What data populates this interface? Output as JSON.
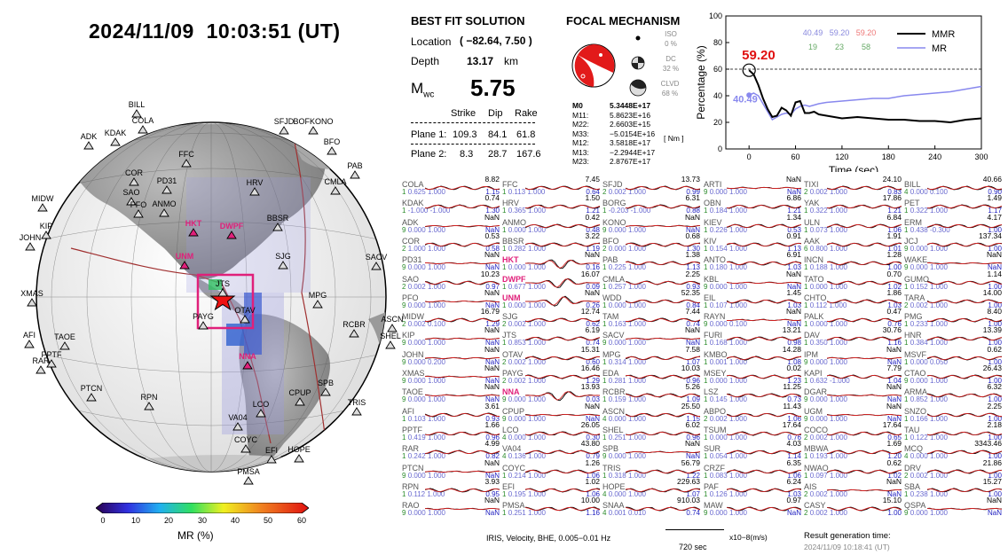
{
  "header": {
    "datetime": "2024/11/09  10:03:51 (UT)"
  },
  "colorbar": {
    "ticks": [
      "0",
      "10",
      "20",
      "30",
      "40",
      "50",
      "60"
    ],
    "label": "MR (%)"
  },
  "globe": {
    "stations": [
      "BILL",
      "COLA",
      "ADK",
      "KDAK",
      "SFJD",
      "BOFKONO",
      "BFO",
      "FFC",
      "COR",
      "PD31",
      "SAO",
      "ANMO",
      "PFO",
      "HRV",
      "CMLA",
      "PAB",
      "MIDW",
      "KIP",
      "JOHN",
      "HKT",
      "DWPF",
      "BBSR",
      "UNM",
      "SACV",
      "SJG",
      "XMAS",
      "JTS",
      "OTAV",
      "PAYG",
      "MPG",
      "ASCN",
      "SHEL",
      "AFI",
      "TAOE",
      "RAR",
      "PPTF",
      "RCBR",
      "NNA",
      "PTCN",
      "RPN",
      "CPUP",
      "SPB",
      "LCO",
      "TRIS",
      "VA04",
      "COYC",
      "EFI",
      "HOPE",
      "PMSA"
    ],
    "highlighted": [
      "HKT",
      "DWPF",
      "UNM",
      "NNA"
    ]
  },
  "best_fit": {
    "title": "BEST FIT SOLUTION",
    "location_label": "Location",
    "location_value": "( −82.64,  7.50 )",
    "depth_label": "Depth",
    "depth_value": "13.17",
    "depth_unit": "km",
    "mw_label": "M",
    "mw_sub": "wc",
    "mw_value": "5.75",
    "cols": [
      "Strike",
      "Dip",
      "Rake"
    ],
    "planes": [
      {
        "label": "Plane 1:",
        "strike": "109.3",
        "dip": "84.1",
        "rake": "61.8"
      },
      {
        "label": "Plane 2:",
        "strike": "8.3",
        "dip": "28.7",
        "rake": "167.6"
      }
    ]
  },
  "focal": {
    "title": "FOCAL MECHANISM",
    "iso_label": "ISO",
    "iso_val": "0  %",
    "dc_label": "DC",
    "dc_val": "32 %",
    "clvd_label": "CLVD",
    "clvd_val": "68 %",
    "moments": [
      {
        "k": "M0",
        "v": "5.3448E+17"
      },
      {
        "k": "M11:",
        "v": "5.8623E+16"
      },
      {
        "k": "M22:",
        "v": "2.6603E+15"
      },
      {
        "k": "M33:",
        "v": "−5.0154E+16"
      },
      {
        "k": "M12:",
        "v": "3.5818E+17"
      },
      {
        "k": "M13:",
        "v": "−2.2944E+17"
      },
      {
        "k": "M23:",
        "v": "2.8767E+17"
      }
    ],
    "unit": "[ Nm ]"
  },
  "chart_data": {
    "type": "line",
    "xlabel": "Time (sec)",
    "ylabel": "Percentage (%)",
    "xlim": [
      -30,
      300
    ],
    "ylim": [
      0,
      100
    ],
    "xticks": [
      "0",
      "60",
      "120",
      "180",
      "240",
      "300"
    ],
    "yticks": [
      "0",
      "20",
      "40",
      "60",
      "80",
      "100"
    ],
    "marker_value": "59.20",
    "mr_marker": "40.49",
    "legend_nums": [
      {
        "v": "40.49",
        "c": "#8888dd"
      },
      {
        "v": "59.20",
        "c": "#8888dd"
      },
      {
        "v": "59.20",
        "c": "#ee7777"
      },
      {
        "v": "19",
        "c": "#66aa66"
      },
      {
        "v": "23",
        "c": "#66aa66"
      },
      {
        "v": "58",
        "c": "#66aa66"
      }
    ],
    "series": [
      {
        "name": "MMR",
        "color": "#000000",
        "x": [
          0,
          6,
          12,
          18,
          24,
          30,
          36,
          42,
          48,
          54,
          60,
          66,
          72,
          78,
          84,
          90,
          100,
          120,
          140,
          160,
          180,
          200,
          220,
          240,
          260,
          280,
          300
        ],
        "values": [
          59.2,
          56,
          48,
          38,
          30,
          24,
          25,
          31,
          29,
          25,
          35,
          36,
          27,
          27,
          28,
          26,
          25,
          23,
          24,
          23,
          22,
          22,
          21,
          21,
          20,
          22,
          23
        ]
      },
      {
        "name": "MR",
        "color": "#8888ee",
        "x": [
          0,
          6,
          12,
          18,
          24,
          30,
          36,
          42,
          48,
          54,
          60,
          66,
          72,
          78,
          84,
          90,
          100,
          120,
          140,
          160,
          180,
          200,
          220,
          240,
          260,
          280,
          300
        ],
        "values": [
          40.49,
          42,
          40,
          34,
          28,
          22,
          24,
          26,
          27,
          26,
          30,
          32,
          33,
          32,
          33,
          34,
          35,
          36,
          37,
          38,
          38,
          40,
          41,
          42,
          43,
          45,
          47
        ]
      }
    ]
  },
  "waveforms": [
    [
      [
        "COLA",
        "8.82",
        "1",
        "0.625",
        "1.000",
        "1.15"
      ],
      [
        "KDAK",
        "0.74",
        "1",
        "-1.000",
        "-1.000",
        "1.30"
      ],
      [
        "ADK",
        "NaN",
        "9",
        "0.000",
        "1.000",
        "NaN"
      ],
      [
        "COR",
        "0.53",
        "2",
        "1.000",
        "1.000",
        "0.58"
      ],
      [
        "PD31",
        "NaN",
        "9",
        "0.000",
        "1.000",
        "NaN"
      ],
      [
        "SAO",
        "10.23",
        "2",
        "0.002",
        "1.000",
        "0.97"
      ],
      [
        "PFO",
        "NaN",
        "9",
        "0.000",
        "1.000",
        "NaN"
      ],
      [
        "MIDW",
        "16.79",
        "2",
        "0.002",
        "0.100",
        "1.29"
      ],
      [
        "KIP",
        "NaN",
        "9",
        "0.000",
        "1.000",
        "NaN"
      ],
      [
        "JOHN",
        "NaN",
        "9",
        "0.000",
        "0.200",
        "NaN"
      ],
      [
        "XMAS",
        "NaN",
        "9",
        "0.000",
        "1.000",
        "NaN"
      ],
      [
        "TAOE",
        "NaN",
        "9",
        "0.000",
        "1.000",
        "NaN"
      ],
      [
        "AFI",
        "3.61",
        "1",
        "0.103",
        "1.000",
        "0.93"
      ],
      [
        "PPTF",
        "1.66",
        "1",
        "0.419",
        "1.000",
        "0.96"
      ],
      [
        "RAR",
        "4.99",
        "1",
        "0.242",
        "1.000",
        "0.82"
      ],
      [
        "PTCN",
        "NaN",
        "9",
        "0.000",
        "1.000",
        "NaN"
      ],
      [
        "RPN",
        "3.93",
        "1",
        "0.112",
        "1.000",
        "0.95"
      ],
      [
        "RAO",
        "NaN",
        "9",
        "0.000",
        "1.000",
        "NaN"
      ]
    ],
    [
      [
        "FFC",
        "7.45",
        "1",
        "0.113",
        "1.000",
        "0.64"
      ],
      [
        "HRV",
        "1.50",
        "1",
        "0.365",
        "1.000",
        "1.21"
      ],
      [
        "ANMO",
        "0.42",
        "1",
        "0.000",
        "1.000",
        "0.48"
      ],
      [
        "BBSR",
        "3.22",
        "1",
        "0.282",
        "1.000",
        "1.19"
      ],
      [
        "HKT",
        "NaN",
        "1",
        "0.000",
        "1.000",
        "0.16"
      ],
      [
        "DWPF",
        "16.07",
        "1",
        "0.677",
        "1.000",
        "0.09"
      ],
      [
        "UNM",
        "NaN",
        "1",
        "0.000",
        "1.000",
        "0.26"
      ],
      [
        "SJG",
        "12.74",
        "2",
        "0.002",
        "1.000",
        "0.62"
      ],
      [
        "JTS",
        "6.19",
        "1",
        "0.853",
        "1.000",
        "0.74"
      ],
      [
        "OTAV",
        "15.31",
        "2",
        "0.002",
        "1.000",
        "0.60"
      ],
      [
        "PAYG",
        "16.46",
        "2",
        "0.002",
        "1.000",
        "1.29"
      ],
      [
        "NNA",
        "13.93",
        "9",
        "0.000",
        "1.000",
        "0.03"
      ],
      [
        "CPUP",
        "NaN",
        "9",
        "0.000",
        "1.000",
        "NaN"
      ],
      [
        "LCO",
        "26.05",
        "4",
        "0.000",
        "1.000",
        "0.30"
      ],
      [
        "VA04",
        "43.80",
        "4",
        "0.136",
        "1.000",
        "0.79"
      ],
      [
        "COYC",
        "1.26",
        "1",
        "0.214",
        "1.000",
        "1.06"
      ],
      [
        "EFI",
        "1.02",
        "1",
        "0.195",
        "1.000",
        "1.06"
      ],
      [
        "PMSA",
        "10.00",
        "1",
        "0.251",
        "1.000",
        "1.16"
      ]
    ],
    [
      [
        "SFJD",
        "13.73",
        "2",
        "0.002",
        "1.000",
        "0.99"
      ],
      [
        "BORG",
        "6.31",
        "1",
        "-0.203",
        "-1.000",
        "0.88"
      ],
      [
        "KONO",
        "NaN",
        "9",
        "0.000",
        "1.000",
        "NaN"
      ],
      [
        "BFO",
        "0.68",
        "2",
        "0.000",
        "1.000",
        "1.30"
      ],
      [
        "PAB",
        "1.38",
        "1",
        "0.225",
        "1.000",
        "1.13"
      ],
      [
        "CMLA",
        "2.25",
        "1",
        "0.257",
        "1.000",
        "0.93"
      ],
      [
        "WDD",
        "52.35",
        "1",
        "0.000",
        "1.000",
        "0.84"
      ],
      [
        "TAM",
        "7.44",
        "1",
        "0.163",
        "1.000",
        "0.74"
      ],
      [
        "SACV",
        "NaN",
        "9",
        "0.000",
        "1.000",
        "NaN"
      ],
      [
        "MPG",
        "7.58",
        "1",
        "0.314",
        "1.000",
        "1.07"
      ],
      [
        "EDA",
        "10.03",
        "1",
        "0.281",
        "1.000",
        "0.96"
      ],
      [
        "RCBR",
        "5.26",
        "1",
        "0.159",
        "1.000",
        "1.09"
      ],
      [
        "ASCN",
        "25.50",
        "4",
        "0.000",
        "1.000",
        "1.15"
      ],
      [
        "SHEL",
        "6.02",
        "1",
        "0.251",
        "1.000",
        "0.96"
      ],
      [
        "SPB",
        "NaN",
        "9",
        "0.000",
        "1.000",
        "NaN"
      ],
      [
        "TRIS",
        "56.79",
        "1",
        "0.318",
        "1.000",
        "1.22"
      ],
      [
        "HOPE",
        "229.63",
        "4",
        "0.000",
        "1.000",
        "1.07"
      ],
      [
        "SNAA",
        "910.03",
        "4",
        "0.001",
        "0.010",
        "0.74"
      ]
    ],
    [
      [
        "ARTI",
        "NaN",
        "9",
        "0.000",
        "1.000",
        "NaN"
      ],
      [
        "OBN",
        "6.86",
        "1",
        "0.184",
        "1.000",
        "1.21"
      ],
      [
        "KIEV",
        "1.34",
        "1",
        "0.226",
        "1.000",
        "0.53"
      ],
      [
        "KIV",
        "0.91",
        "1",
        "0.154",
        "1.000",
        "1.13"
      ],
      [
        "ANTO",
        "6.91",
        "1",
        "0.180",
        "1.000",
        "1.03"
      ],
      [
        "KBL",
        "NaN",
        "9",
        "0.000",
        "1.000",
        "NaN"
      ],
      [
        "EIL",
        "1.45",
        "1",
        "0.107",
        "1.000",
        "1.03"
      ],
      [
        "RAYN",
        "NaN",
        "9",
        "0.000",
        "0.100",
        "NaN"
      ],
      [
        "FURI",
        "13.21",
        "1",
        "0.168",
        "1.000",
        "0.98"
      ],
      [
        "KMBO",
        "14.28",
        "1",
        "0.001",
        "1.000",
        "1.08"
      ],
      [
        "MSEY",
        "0.02",
        "1",
        "0.000",
        "1.000",
        "1.23"
      ],
      [
        "LSZ",
        "11.25",
        "1",
        "0.145",
        "1.000",
        "0.73"
      ],
      [
        "ABPO",
        "11.43",
        "2",
        "0.002",
        "1.000",
        "1.06"
      ],
      [
        "TSUM",
        "17.64",
        "1",
        "0.000",
        "1.000",
        "0.76"
      ],
      [
        "SUR",
        "4.03",
        "1",
        "0.054",
        "1.000",
        "1.14"
      ],
      [
        "CRZF",
        "6.35",
        "1",
        "0.083",
        "1.000",
        "1.06"
      ],
      [
        "PAF",
        "6.24",
        "1",
        "0.126",
        "1.000",
        "1.03"
      ],
      [
        "MAW",
        "0.97",
        "9",
        "0.000",
        "1.000",
        "NaN"
      ]
    ],
    [
      [
        "TIXI",
        "24.10",
        "2",
        "0.002",
        "1.000",
        "0.83"
      ],
      [
        "YAK",
        "17.86",
        "1",
        "0.322",
        "1.000",
        "1.21"
      ],
      [
        "ULN",
        "6.84",
        "1",
        "0.073",
        "1.000",
        "1.06"
      ],
      [
        "AAK",
        "1.91",
        "6",
        "0.800",
        "1.000",
        "1.01"
      ],
      [
        "INCN",
        "1.28",
        "1",
        "0.188",
        "1.000",
        "1.00"
      ],
      [
        "TATO",
        "0.70",
        "1",
        "0.000",
        "1.000",
        "1.02"
      ],
      [
        "CHTO",
        "1.86",
        "1",
        "0.112",
        "1.000",
        "1.03"
      ],
      [
        "PALK",
        "0.47",
        "1",
        "0.000",
        "1.000",
        "0.76"
      ],
      [
        "DAV",
        "30.76",
        "1",
        "0.350",
        "1.000",
        "1.16"
      ],
      [
        "IPM",
        "NaN",
        "9",
        "0.000",
        "1.000",
        "NaN"
      ],
      [
        "KAPI",
        "7.79",
        "1",
        "0.632",
        "-1.000",
        "1.04"
      ],
      [
        "DGAR",
        "NaN",
        "9",
        "0.000",
        "1.000",
        "NaN"
      ],
      [
        "UGM",
        "NaN",
        "9",
        "0.000",
        "1.000",
        "NaN"
      ],
      [
        "COCO",
        "17.64",
        "2",
        "0.002",
        "1.000",
        "0.65"
      ],
      [
        "MBWA",
        "1.69",
        "1",
        "0.193",
        "1.000",
        "1.20"
      ],
      [
        "NWAO",
        "0.62",
        "1",
        "0.097",
        "1.000",
        "1.02"
      ],
      [
        "AIS",
        "NaN",
        "2",
        "0.002",
        "1.000",
        "NaN"
      ],
      [
        "CASY",
        "15.10",
        "2",
        "0.002",
        "1.000",
        "1.00"
      ]
    ],
    [
      [
        "BILL",
        "40.66",
        "4",
        "0.000",
        "0.100",
        "0.90"
      ],
      [
        "PET",
        "1.49",
        "1",
        "0.322",
        "1.000",
        "1.17"
      ],
      [
        "ERM",
        "4.17",
        "1",
        "0.438",
        "-0.300",
        "1.00"
      ],
      [
        "JCJ",
        "137.34",
        "9",
        "0.000",
        "1.000",
        "1.00"
      ],
      [
        "WAKE",
        "NaN",
        "9",
        "0.000",
        "1.000",
        "NaN"
      ],
      [
        "GUMO",
        "1.14",
        "1",
        "0.152",
        "1.000",
        "1.00"
      ],
      [
        "TARA",
        "14.00",
        "2",
        "0.002",
        "1.000",
        "1.00"
      ],
      [
        "PMG",
        "8.40",
        "1",
        "0.233",
        "1.000",
        "1.00"
      ],
      [
        "HNR",
        "13.39",
        "1",
        "0.384",
        "1.000",
        "1.00"
      ],
      [
        "MSVF",
        "0.62",
        "1",
        "0.000",
        "0.050",
        "1.00"
      ],
      [
        "CTAO",
        "26.43",
        "9",
        "0.000",
        "1.000",
        "1.00"
      ],
      [
        "ARMA",
        "6.32",
        "1",
        "0.852",
        "1.000",
        "1.00"
      ],
      [
        "SNZO",
        "2.25",
        "1",
        "0.166",
        "1.000",
        "1.00"
      ],
      [
        "TAU",
        "2.18",
        "1",
        "0.122",
        "1.000",
        "1.00"
      ],
      [
        "MCQ",
        "3343.46",
        "4",
        "0.000",
        "1.000",
        "1.00"
      ],
      [
        "DRV",
        "21.86",
        "2",
        "0.002",
        "1.000",
        "1.00"
      ],
      [
        "SBA",
        "15.27",
        "1",
        "0.238",
        "1.000",
        "1.00"
      ],
      [
        "QSPA",
        "NaN",
        "9",
        "0.000",
        "1.000",
        "NaN"
      ]
    ]
  ],
  "footer": {
    "filter": "IRIS, Velocity,   BHE,  0.005−0.01 Hz",
    "scale": "720 sec",
    "unit": "x10−8(m/s)",
    "rgt_label": "Result generation time:",
    "rgt_value": "2024/11/09 10:18:41 (UT)"
  }
}
